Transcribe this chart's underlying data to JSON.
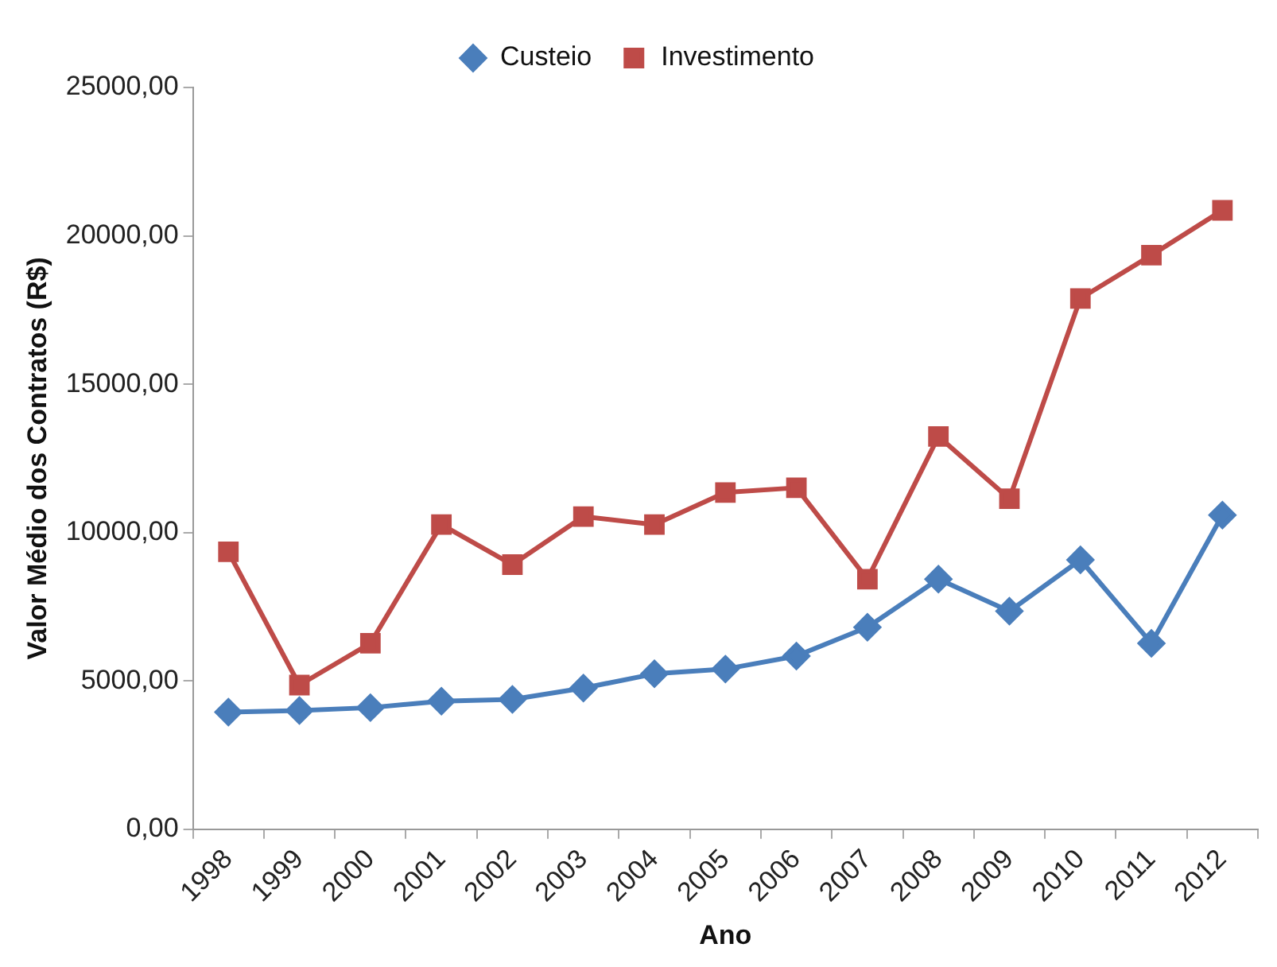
{
  "chart_data": {
    "type": "line",
    "xlabel": "Ano",
    "ylabel": "Valor Médio dos Contratos (R$)",
    "categories": [
      "1998",
      "1999",
      "2000",
      "2001",
      "2002",
      "2003",
      "2004",
      "2005",
      "2006",
      "2007",
      "2008",
      "2009",
      "2010",
      "2011",
      "2012"
    ],
    "series": [
      {
        "name": "Custeio",
        "color": "#4a7ebb",
        "marker": "diamond",
        "values": [
          3950,
          4000,
          4100,
          4320,
          4380,
          4760,
          5240,
          5400,
          5840,
          6810,
          8430,
          7350,
          9080,
          6270,
          10590
        ]
      },
      {
        "name": "Investimento",
        "color": "#be4b48",
        "marker": "square",
        "values": [
          9350,
          4860,
          6270,
          10270,
          8920,
          10540,
          10270,
          11350,
          11510,
          8430,
          13240,
          11140,
          17890,
          19350,
          20860
        ]
      }
    ],
    "ylim": [
      0,
      25000
    ],
    "yticks": [
      {
        "value": 0,
        "label": "0,00"
      },
      {
        "value": 5000,
        "label": "5000,00"
      },
      {
        "value": 10000,
        "label": "10000,00"
      },
      {
        "value": 15000,
        "label": "15000,00"
      },
      {
        "value": 20000,
        "label": "20000,00"
      },
      {
        "value": 25000,
        "label": "25000,00"
      }
    ],
    "grid": false,
    "legend": "top",
    "line_style": "solid"
  }
}
